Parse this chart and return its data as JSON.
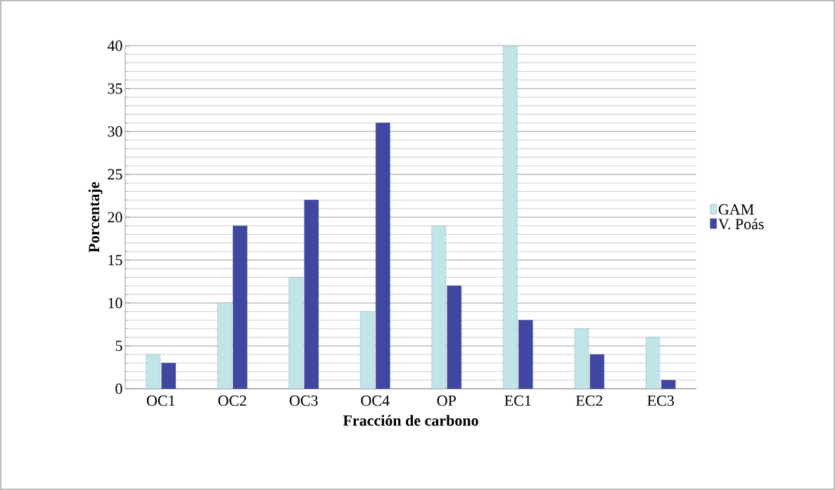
{
  "chart_data": {
    "type": "bar",
    "xlabel": "Fracción de  carbono",
    "ylabel": "Porcentaje",
    "categories": [
      "OC1",
      "OC2",
      "OC3",
      "OC4",
      "OP",
      "EC1",
      "EC2",
      "EC3"
    ],
    "series": [
      {
        "name": "GAM",
        "color": "#c0e4e8",
        "values": [
          4,
          10,
          13,
          9,
          19,
          40,
          7,
          6
        ]
      },
      {
        "name": "V. Poás",
        "color": "#3f47a0",
        "values": [
          3,
          19,
          22,
          31,
          12,
          8,
          4,
          1
        ]
      }
    ],
    "ylim": [
      0,
      40
    ],
    "yticks": [
      0,
      5,
      10,
      15,
      20,
      25,
      30,
      35,
      40
    ],
    "grid": "y",
    "legend": "right"
  }
}
